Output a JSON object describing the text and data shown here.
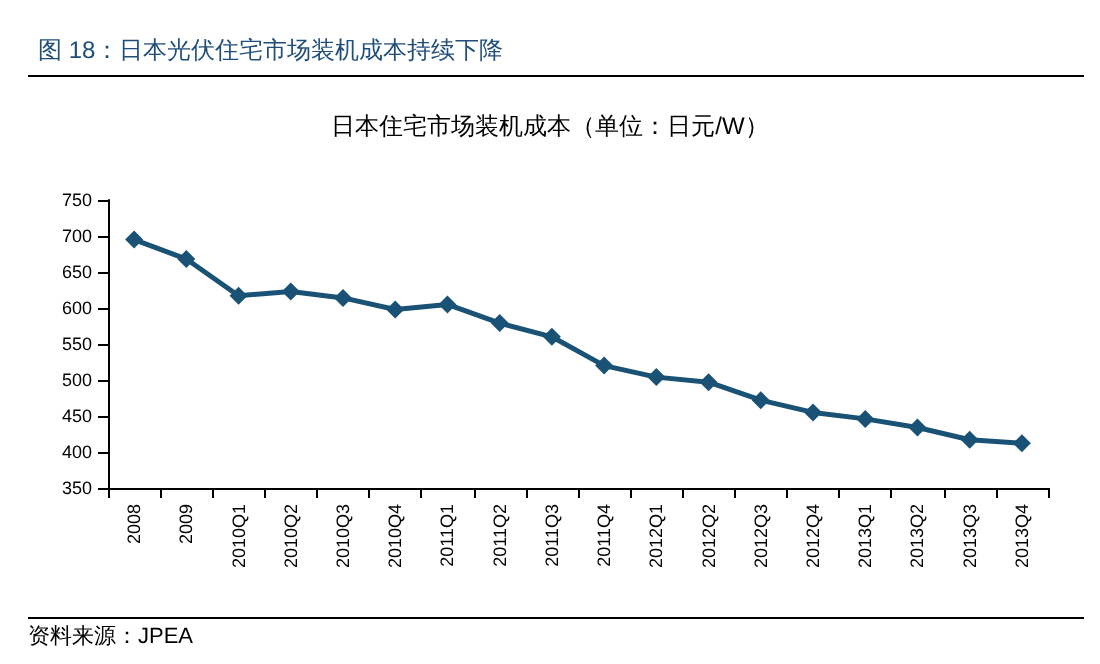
{
  "chart_data": {
    "type": "line",
    "title": "图 18：日本光伏住宅市场装机成本持续下降",
    "subtitle": "日本住宅市场装机成本（单位：日元/W）",
    "categories": [
      "2008",
      "2009",
      "2010Q1",
      "2010Q2",
      "2010Q3",
      "2010Q4",
      "2011Q1",
      "2011Q2",
      "2011Q3",
      "2011Q4",
      "2012Q1",
      "2012Q2",
      "2012Q3",
      "2012Q4",
      "2013Q1",
      "2013Q2",
      "2013Q3",
      "2013Q4"
    ],
    "values": [
      695,
      668,
      617,
      623,
      614,
      598,
      605,
      579,
      560,
      520,
      504,
      497,
      472,
      455,
      446,
      434,
      417,
      412
    ],
    "color": "#1a5276",
    "marker": "diamond",
    "line_style": "solid",
    "ylim": [
      350,
      750
    ],
    "yticks": [
      350,
      400,
      450,
      500,
      550,
      600,
      650,
      700,
      750
    ],
    "grid": false,
    "annotations": [
      "资料来源：JPEA"
    ]
  }
}
